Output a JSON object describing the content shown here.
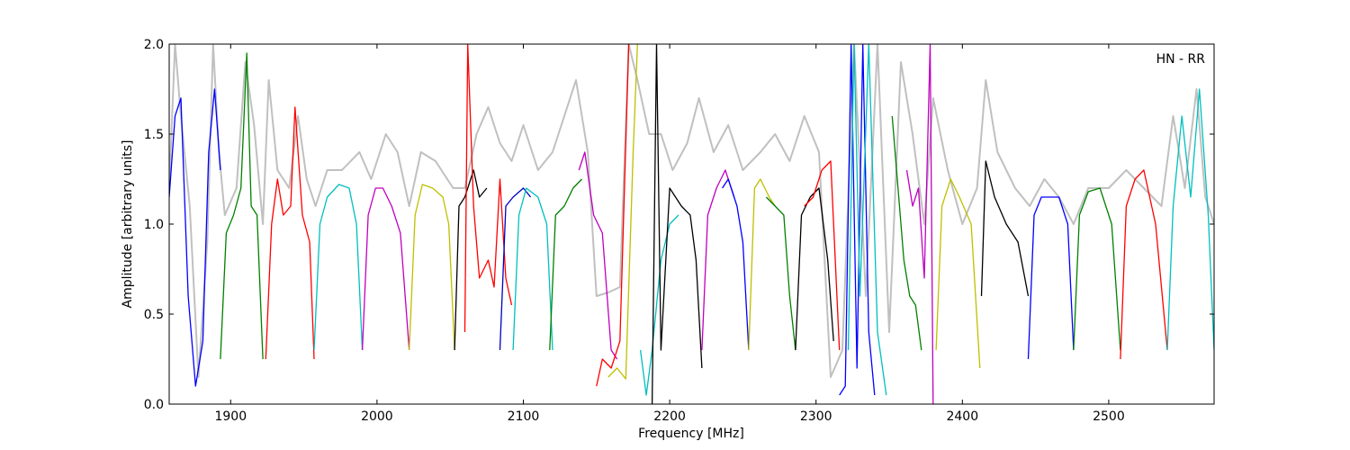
{
  "chart_data": {
    "type": "line",
    "annotation": "HN - RR",
    "xlabel": "Frequency [MHz]",
    "ylabel": "Amplitude [arbitrary units]",
    "xlim": [
      1858,
      2572
    ],
    "ylim": [
      0,
      2
    ],
    "xticks": [
      1900,
      2000,
      2100,
      2200,
      2300,
      2400,
      2500
    ],
    "yticks": [
      {
        "value": 0,
        "label": "0.0"
      },
      {
        "value": 0.5,
        "label": "0.5"
      },
      {
        "value": 1,
        "label": "1.0"
      },
      {
        "value": 1.5,
        "label": "1.5"
      },
      {
        "value": 2,
        "label": "2.0"
      }
    ],
    "series": [
      {
        "color": "#c0c0c0",
        "x": [
          1858,
          1862,
          1866,
          1872,
          1878,
          1884,
          1888,
          1892,
          1896,
          1904,
          1910,
          1916,
          1922,
          1926,
          1932,
          1940,
          1946,
          1952,
          1958,
          1966,
          1976,
          1988,
          1996,
          2006,
          2014,
          2022,
          2030,
          2040,
          2052,
          2060,
          2068,
          2076,
          2084,
          2092,
          2100,
          2110,
          2120,
          2128,
          2136,
          2144,
          2150,
          2158,
          2166,
          2172,
          2178,
          2186,
          2194,
          2202,
          2212,
          2220,
          2230,
          2240,
          2250,
          2262,
          2272,
          2282,
          2292,
          2302,
          2310,
          2318,
          2326,
          2334,
          2342,
          2350,
          2358,
          2366,
          2374,
          2380,
          2390,
          2400,
          2410,
          2416,
          2424,
          2436,
          2446,
          2456,
          2466,
          2476,
          2486,
          2500,
          2512,
          2524,
          2536,
          2544,
          2552,
          2560,
          2566,
          2572
        ],
        "values": [
          1.2,
          2.0,
          1.6,
          1.1,
          0.15,
          0.9,
          2.0,
          1.4,
          1.05,
          1.2,
          1.9,
          1.55,
          1.0,
          1.8,
          1.3,
          1.2,
          1.6,
          1.25,
          1.1,
          1.3,
          1.3,
          1.4,
          1.25,
          1.5,
          1.4,
          1.1,
          1.4,
          1.35,
          1.2,
          1.2,
          1.5,
          1.65,
          1.45,
          1.35,
          1.55,
          1.3,
          1.4,
          1.6,
          1.8,
          1.4,
          0.6,
          0.62,
          0.65,
          2.0,
          1.8,
          1.5,
          1.5,
          1.3,
          1.45,
          1.7,
          1.4,
          1.55,
          1.3,
          1.4,
          1.5,
          1.35,
          1.6,
          1.4,
          0.15,
          0.3,
          2.0,
          0.6,
          2.0,
          0.4,
          1.9,
          1.5,
          1.0,
          1.7,
          1.3,
          1.0,
          1.2,
          1.8,
          1.4,
          1.2,
          1.1,
          1.25,
          1.15,
          1.0,
          1.2,
          1.2,
          1.3,
          1.2,
          1.1,
          1.6,
          1.2,
          1.75,
          1.15,
          1.0
        ]
      },
      {
        "color": "#0000ff",
        "x": [
          1858,
          1862,
          1866,
          1871,
          1876,
          1881,
          1885,
          1889,
          1893
        ],
        "values": [
          1.15,
          1.6,
          1.7,
          0.6,
          0.1,
          0.35,
          1.4,
          1.75,
          1.3
        ]
      },
      {
        "color": "#008000",
        "x": [
          1893,
          1897,
          1902,
          1907,
          1911,
          1914,
          1918,
          1922
        ],
        "values": [
          0.25,
          0.95,
          1.05,
          1.2,
          1.95,
          1.1,
          1.05,
          0.25
        ]
      },
      {
        "color": "#ff0000",
        "x": [
          1924,
          1928,
          1932,
          1936,
          1941,
          1944,
          1949,
          1954,
          1957
        ],
        "values": [
          0.25,
          1.0,
          1.25,
          1.05,
          1.1,
          1.65,
          1.05,
          0.9,
          0.25
        ]
      },
      {
        "color": "#00bfbf",
        "x": [
          1957,
          1961,
          1966,
          1974,
          1981,
          1986,
          1990
        ],
        "values": [
          0.3,
          1.0,
          1.15,
          1.22,
          1.2,
          1.0,
          0.3
        ]
      },
      {
        "color": "#bf00bf",
        "x": [
          1990,
          1994,
          1999,
          2004,
          2010,
          2016,
          2022
        ],
        "values": [
          0.3,
          1.05,
          1.2,
          1.2,
          1.1,
          0.95,
          0.3
        ]
      },
      {
        "color": "#bfbf00",
        "x": [
          2022,
          2026,
          2031,
          2038,
          2045,
          2049,
          2053
        ],
        "values": [
          0.3,
          1.05,
          1.22,
          1.2,
          1.15,
          1.0,
          0.3
        ]
      },
      {
        "color": "#000000",
        "x": [
          2053,
          2056,
          2060,
          2066,
          2070,
          2075
        ],
        "values": [
          0.3,
          1.1,
          1.15,
          1.3,
          1.15,
          1.2
        ]
      },
      {
        "color": "#ff0000",
        "x": [
          2060,
          2062,
          2066,
          2070,
          2076,
          2080,
          2084,
          2088,
          2092
        ],
        "values": [
          0.4,
          2.0,
          1.1,
          0.7,
          0.8,
          0.65,
          1.25,
          0.7,
          0.55
        ]
      },
      {
        "color": "#0000bf",
        "x": [
          2084,
          2088,
          2093,
          2100,
          2105
        ],
        "values": [
          0.3,
          1.1,
          1.15,
          1.2,
          1.15
        ]
      },
      {
        "color": "#00bfbf",
        "x": [
          2093,
          2097,
          2102,
          2110,
          2116,
          2120
        ],
        "values": [
          0.3,
          1.05,
          1.2,
          1.15,
          1.0,
          0.3
        ]
      },
      {
        "color": "#008000",
        "x": [
          2118,
          2122,
          2128,
          2134,
          2140
        ],
        "values": [
          0.3,
          1.05,
          1.1,
          1.2,
          1.25
        ]
      },
      {
        "color": "#bf00bf",
        "x": [
          2138,
          2142,
          2148,
          2154,
          2160,
          2164
        ],
        "values": [
          1.3,
          1.4,
          1.05,
          0.95,
          0.3,
          0.25
        ]
      },
      {
        "color": "#ff0000",
        "x": [
          2150,
          2154,
          2160,
          2166,
          2172
        ],
        "values": [
          0.1,
          0.25,
          0.2,
          0.35,
          2.0
        ]
      },
      {
        "color": "#bfbf00",
        "x": [
          2158,
          2164,
          2170,
          2175,
          2178
        ],
        "values": [
          0.15,
          0.2,
          0.14,
          1.4,
          2.0
        ]
      },
      {
        "color": "#00bfbf",
        "x": [
          2180,
          2184,
          2188,
          2194,
          2200,
          2206
        ],
        "values": [
          0.3,
          0.05,
          0.3,
          0.8,
          1.0,
          1.05
        ]
      },
      {
        "color": "#000000",
        "x": [
          2188,
          2191,
          2194,
          2200,
          2208,
          2214,
          2218,
          2222
        ],
        "values": [
          0.0,
          2.0,
          0.3,
          1.2,
          1.1,
          1.05,
          0.8,
          0.2
        ]
      },
      {
        "color": "#bf00bf",
        "x": [
          2222,
          2226,
          2232,
          2238,
          2244
        ],
        "values": [
          0.3,
          1.05,
          1.2,
          1.3,
          1.15
        ]
      },
      {
        "color": "#0000ff",
        "x": [
          2236,
          2240,
          2246,
          2250,
          2254
        ],
        "values": [
          1.2,
          1.25,
          1.1,
          0.9,
          0.3
        ]
      },
      {
        "color": "#bfbf00",
        "x": [
          2254,
          2258,
          2262,
          2268,
          2272
        ],
        "values": [
          0.3,
          1.2,
          1.25,
          1.15,
          1.1
        ]
      },
      {
        "color": "#008000",
        "x": [
          2266,
          2272,
          2278,
          2282,
          2286
        ],
        "values": [
          1.15,
          1.1,
          1.05,
          0.6,
          0.3
        ]
      },
      {
        "color": "#000000",
        "x": [
          2286,
          2290,
          2296,
          2302,
          2308,
          2312
        ],
        "values": [
          0.3,
          1.05,
          1.15,
          1.2,
          0.8,
          0.35
        ]
      },
      {
        "color": "#ff0000",
        "x": [
          2292,
          2298,
          2304,
          2310,
          2316
        ],
        "values": [
          1.1,
          1.15,
          1.3,
          1.35,
          0.3
        ]
      },
      {
        "color": "#0000ff",
        "x": [
          2316,
          2320,
          2324,
          2328,
          2332,
          2336,
          2340
        ],
        "values": [
          0.05,
          0.1,
          2.0,
          0.2,
          2.0,
          0.4,
          0.05
        ]
      },
      {
        "color": "#00bfbf",
        "x": [
          2322,
          2326,
          2330,
          2336,
          2342,
          2348
        ],
        "values": [
          0.3,
          2.0,
          0.6,
          2.0,
          0.4,
          0.05
        ]
      },
      {
        "color": "#008000",
        "x": [
          2352,
          2356,
          2360,
          2364,
          2368,
          2372
        ],
        "values": [
          1.6,
          1.2,
          0.8,
          0.6,
          0.55,
          0.3
        ]
      },
      {
        "color": "#bf00bf",
        "x": [
          2362,
          2366,
          2370,
          2374,
          2378,
          2380
        ],
        "values": [
          1.3,
          1.1,
          1.2,
          0.7,
          2.0,
          0.0
        ]
      },
      {
        "color": "#bfbf00",
        "x": [
          2382,
          2386,
          2392,
          2398,
          2406,
          2412
        ],
        "values": [
          0.3,
          1.1,
          1.25,
          1.15,
          1.0,
          0.2
        ]
      },
      {
        "color": "#000000",
        "x": [
          2413,
          2416,
          2422,
          2430,
          2438,
          2445
        ],
        "values": [
          0.6,
          1.35,
          1.15,
          1.0,
          0.9,
          0.6
        ]
      },
      {
        "color": "#0000ff",
        "x": [
          2445,
          2449,
          2454,
          2460,
          2466,
          2472,
          2476
        ],
        "values": [
          0.25,
          1.05,
          1.15,
          1.15,
          1.15,
          1.0,
          0.3
        ]
      },
      {
        "color": "#008000",
        "x": [
          2476,
          2480,
          2486,
          2494,
          2502,
          2508
        ],
        "values": [
          0.3,
          1.05,
          1.18,
          1.2,
          1.0,
          0.3
        ]
      },
      {
        "color": "#ff0000",
        "x": [
          2508,
          2512,
          2518,
          2524,
          2532,
          2540
        ],
        "values": [
          0.25,
          1.1,
          1.25,
          1.3,
          1.0,
          0.3
        ]
      },
      {
        "color": "#00bfbf",
        "x": [
          2540,
          2544,
          2550,
          2556,
          2562,
          2568,
          2572
        ],
        "values": [
          0.3,
          1.1,
          1.6,
          1.15,
          1.75,
          1.05,
          0.3
        ]
      }
    ]
  }
}
